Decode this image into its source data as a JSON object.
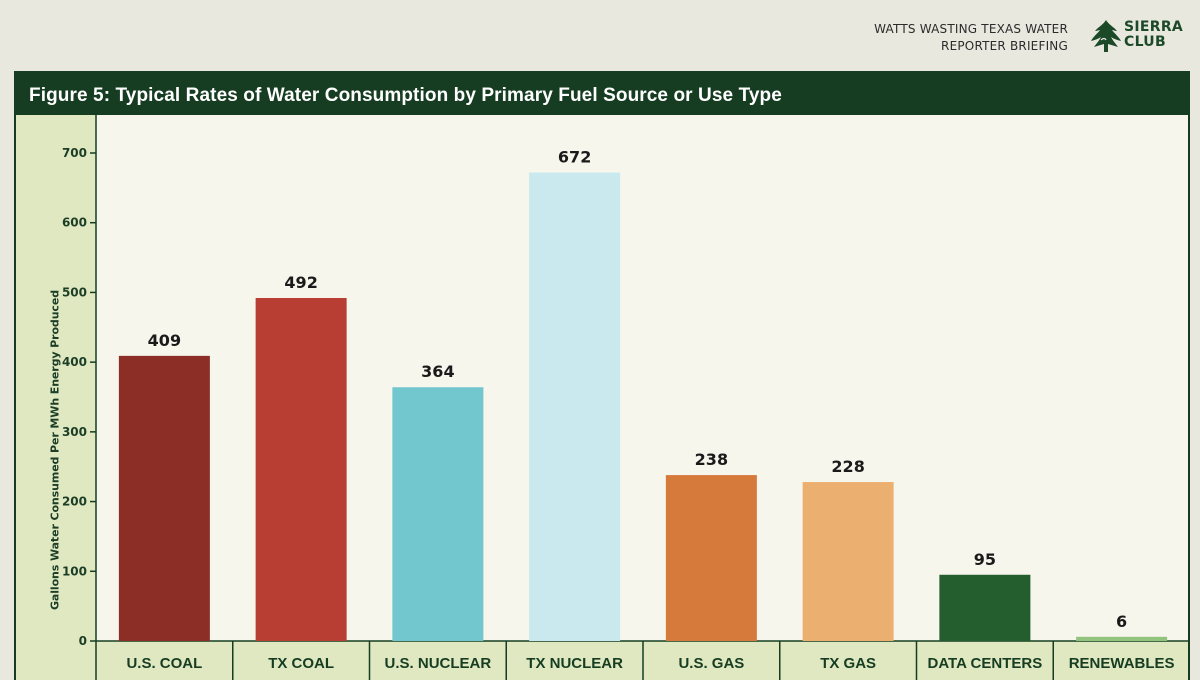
{
  "header": {
    "line1": "WATTS WASTING TEXAS WATER",
    "line2": "REPORTER BRIEFING",
    "logo_line1": "SIERRA",
    "logo_line2": "CLUB",
    "logo_icon": "sierra-club-tree-icon"
  },
  "chart_data": {
    "type": "bar",
    "title": "Figure 5: Typical Rates of Water Consumption by Primary Fuel Source or Use Type",
    "xlabel": "",
    "ylabel": "Gallons Water Consumed Per MWh Energy Produced",
    "ylim": [
      0,
      750
    ],
    "yticks": [
      0,
      100,
      200,
      300,
      400,
      500,
      600,
      700
    ],
    "grid": false,
    "categories": [
      "U.S. COAL",
      "TX COAL",
      "U.S. NUCLEAR",
      "TX NUCLEAR",
      "U.S. GAS",
      "TX GAS",
      "DATA CENTERS",
      "RENEWABLES"
    ],
    "values": [
      409,
      492,
      364,
      672,
      238,
      228,
      95,
      6
    ],
    "colors": [
      "#8c2e26",
      "#b83e33",
      "#72c7cf",
      "#c9e9ee",
      "#d67a3c",
      "#ebb06f",
      "#245e2e",
      "#93c47d"
    ]
  },
  "colors": {
    "title_bar": "#163d22",
    "band": "#dfe8c0",
    "plot_bg": "#f6f6ec",
    "page_bg": "#e8e8df"
  }
}
